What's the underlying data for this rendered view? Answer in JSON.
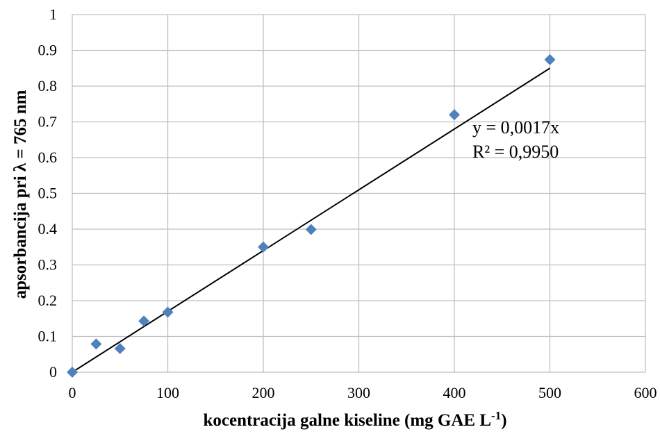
{
  "chart_data": {
    "type": "scatter",
    "title": "",
    "xlabel": "kocentracija galne kiseline (mg GAE L",
    "xlabel_superscript": "-1",
    "xlabel_suffix": ")",
    "ylabel": "apsorbancija pri λ = 765 nm",
    "xlim": [
      0,
      600
    ],
    "ylim": [
      0,
      1
    ],
    "x_ticks": [
      0,
      100,
      200,
      300,
      400,
      500,
      600
    ],
    "y_ticks": [
      0,
      0.1,
      0.2,
      0.3,
      0.4,
      0.5,
      0.6,
      0.7,
      0.8,
      0.9,
      1
    ],
    "x_tick_labels": [
      "0",
      "100",
      "200",
      "300",
      "400",
      "500",
      "600"
    ],
    "y_tick_labels": [
      "0",
      "0.1",
      "0.2",
      "0.3",
      "0.4",
      "0.5",
      "0.6",
      "0.7",
      "0.8",
      "0.9",
      "1"
    ],
    "grid": true,
    "legend": "none",
    "series": [
      {
        "marker": "diamond",
        "color": "#4F81BD",
        "points": [
          {
            "x": 0,
            "y": 0.0
          },
          {
            "x": 25,
            "y": 0.079
          },
          {
            "x": 50,
            "y": 0.066
          },
          {
            "x": 75,
            "y": 0.143
          },
          {
            "x": 100,
            "y": 0.168
          },
          {
            "x": 200,
            "y": 0.35
          },
          {
            "x": 250,
            "y": 0.399
          },
          {
            "x": 400,
            "y": 0.72
          },
          {
            "x": 500,
            "y": 0.874
          }
        ]
      }
    ],
    "trendline": {
      "type": "linear",
      "slope": 0.0017,
      "intercept": 0,
      "x_range": [
        0,
        500
      ],
      "color": "#000000",
      "equation": "y = 0,0017x",
      "r_squared": "R² = 0,9950"
    }
  }
}
